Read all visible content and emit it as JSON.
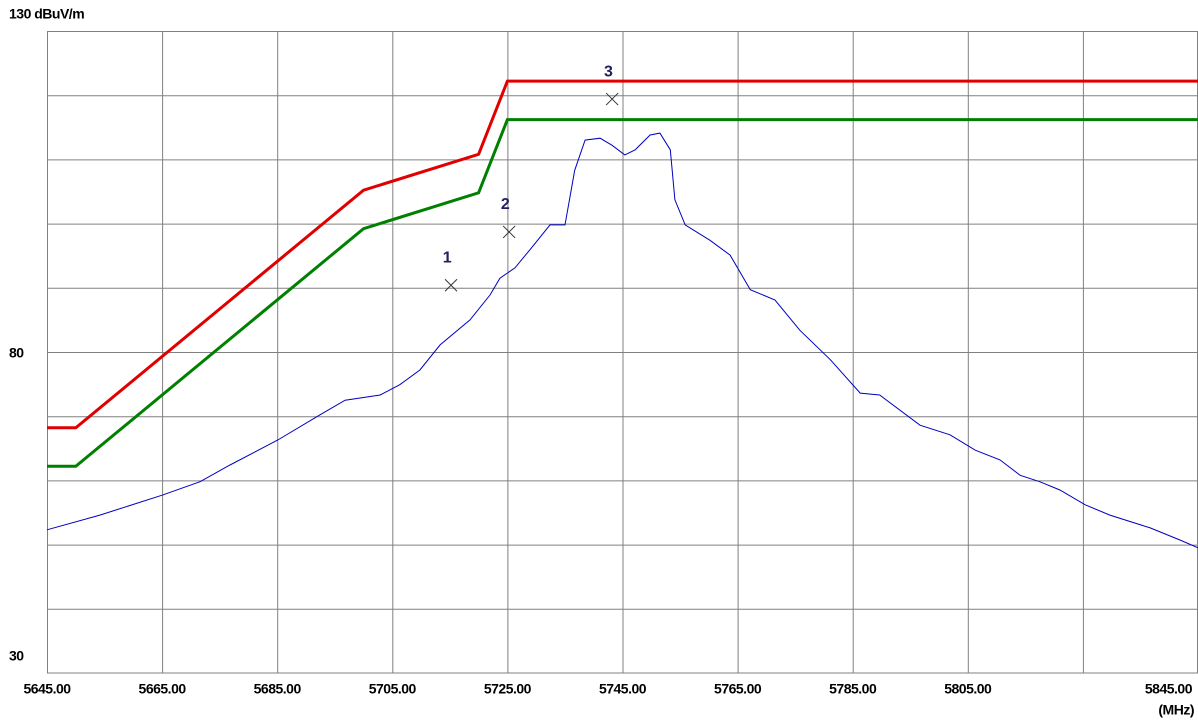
{
  "chart_data": {
    "type": "line",
    "xlabel": "(MHz)",
    "xlim": [
      5645,
      5845
    ],
    "ylim": [
      30,
      130
    ],
    "yticks": [
      {
        "value": 130,
        "label": "130 dBuV/m"
      },
      80,
      30
    ],
    "xticks": [
      {
        "value": 5645,
        "label": "5645.00"
      },
      {
        "value": 5665,
        "label": "5665.00"
      },
      {
        "value": 5685,
        "label": "5685.00"
      },
      {
        "value": 5705,
        "label": "5705.00"
      },
      {
        "value": 5725,
        "label": "5725.00"
      },
      {
        "value": 5745,
        "label": "5745.00"
      },
      {
        "value": 5765,
        "label": "5765.00"
      },
      {
        "value": 5785,
        "label": "5785.00"
      },
      {
        "value": 5805,
        "label": "5805.00"
      },
      {
        "value": 5845,
        "label": "5845.00"
      }
    ],
    "xgrid": [
      5665,
      5685,
      5705,
      5725,
      5745,
      5765,
      5785,
      5805,
      5825
    ],
    "ygrid": [
      40,
      50,
      60,
      70,
      80,
      90,
      100,
      110,
      120
    ],
    "grid": true,
    "series": [
      {
        "color": "#e00000",
        "x": [
          5645,
          5650,
          5700,
          5720,
          5725,
          5845
        ],
        "values": [
          68.2,
          68.2,
          105.2,
          110.8,
          122.2,
          122.2
        ]
      },
      {
        "color": "#008000",
        "x": [
          5645,
          5650,
          5700,
          5720,
          5725,
          5845
        ],
        "values": [
          62.2,
          62.2,
          99.2,
          104.8,
          116.2,
          116.2
        ]
      },
      {
        "color": "#0000c0",
        "x": [
          5645,
          5654.2,
          5665,
          5671.6,
          5676.8,
          5685.1,
          5692.4,
          5696.8,
          5702.9,
          5706.3,
          5709.8,
          5713.3,
          5718.5,
          5722,
          5723.7,
          5726.3,
          5728.9,
          5732.4,
          5735,
          5736.7,
          5738.5,
          5741.1,
          5743.2,
          5745.4,
          5747.2,
          5749.8,
          5751.5,
          5753.3,
          5754.1,
          5755.9,
          5760.2,
          5763.7,
          5767.2,
          5771.5,
          5775.8,
          5781.1,
          5786.3,
          5789.7,
          5796.7,
          5801.9,
          5806.3,
          5810.6,
          5814.1,
          5817.5,
          5821,
          5825.4,
          5829.7,
          5836.7,
          5841.9,
          5845
        ],
        "values": [
          52.3,
          54.6,
          57.7,
          59.8,
          62.4,
          66.3,
          70.2,
          72.5,
          73.3,
          74.9,
          77.2,
          81.1,
          85,
          88.9,
          91.5,
          93.1,
          95.9,
          99.8,
          99.8,
          108.3,
          113,
          113.3,
          112.2,
          110.7,
          111.5,
          113.8,
          114.1,
          111.5,
          103.7,
          99.8,
          97.4,
          95.1,
          89.7,
          88.1,
          83.4,
          78.8,
          73.6,
          73.3,
          68.6,
          67.1,
          64.7,
          63.2,
          60.8,
          59.8,
          58.5,
          56.2,
          54.6,
          52.6,
          50.7,
          49.5
        ]
      }
    ],
    "markers": [
      {
        "label": "1",
        "x": 5715.2,
        "y": 90.4
      },
      {
        "label": "2",
        "x": 5725.3,
        "y": 98.7
      },
      {
        "label": "3",
        "x": 5743.2,
        "y": 119.4
      }
    ]
  }
}
